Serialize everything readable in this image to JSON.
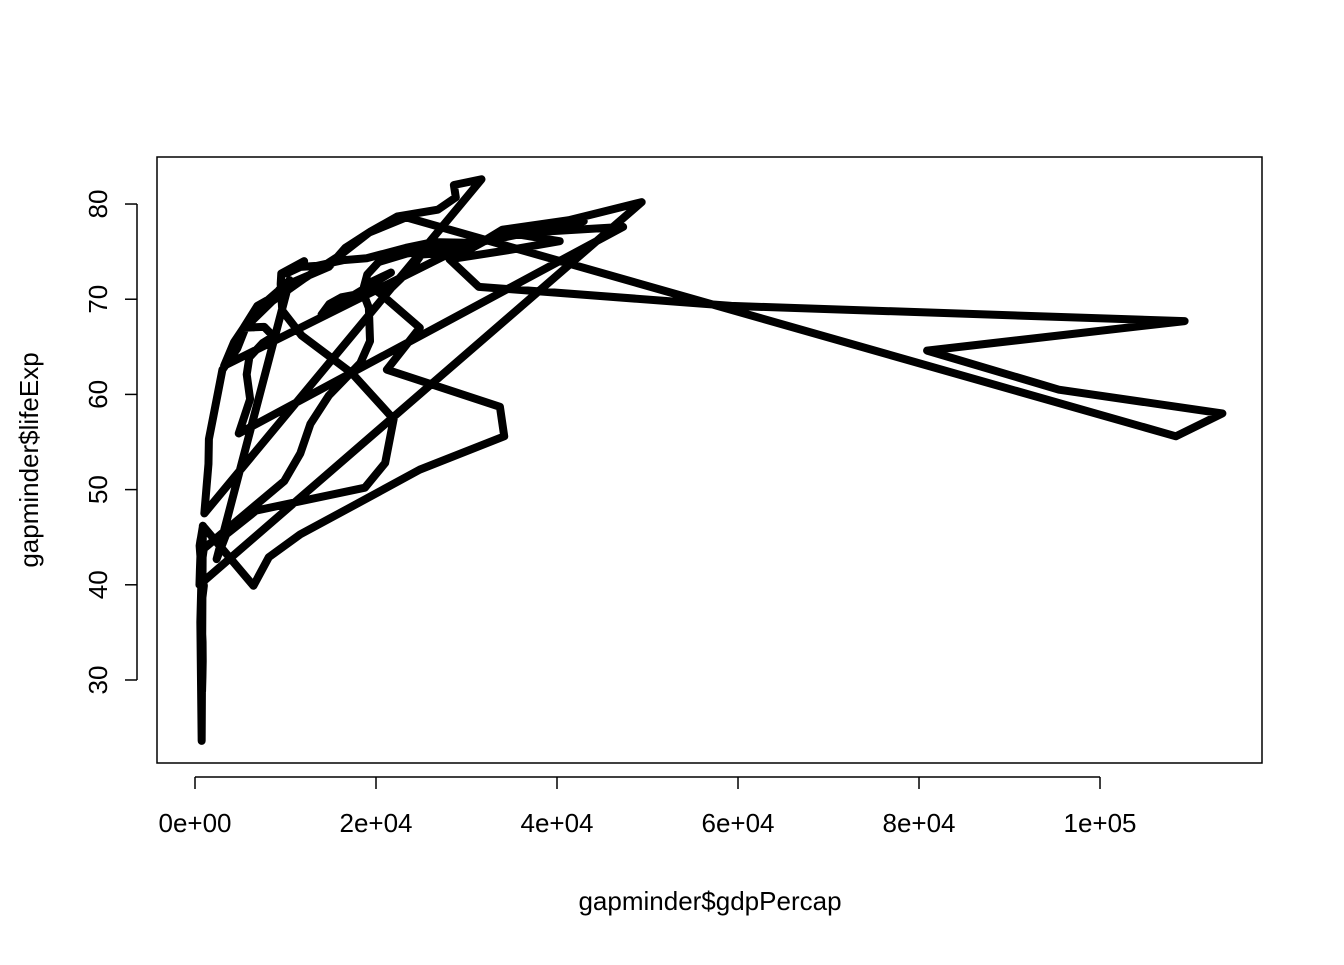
{
  "chart_data": {
    "type": "line",
    "xlabel": "gapminder$gdpPercap",
    "ylabel": "gapminder$lifeExp",
    "xlim": [
      -4199,
      117900
    ],
    "ylim": [
      21.28,
      84.94
    ],
    "xticks": [
      {
        "value": 0,
        "label": "0e+00"
      },
      {
        "value": 20000,
        "label": "2e+04"
      },
      {
        "value": 40000,
        "label": "4e+04"
      },
      {
        "value": 60000,
        "label": "6e+04"
      },
      {
        "value": 80000,
        "label": "8e+04"
      },
      {
        "value": 100000,
        "label": "1e+05"
      }
    ],
    "yticks": [
      30,
      40,
      50,
      60,
      70,
      80
    ],
    "color": "#000000",
    "x": [
      779,
      821,
      853,
      836,
      740,
      786,
      978,
      852,
      649,
      635,
      727,
      975,
      9867,
      11636,
      12753,
      14805,
      18269,
      19340,
      19211,
      18524,
      19036,
      20292,
      23404,
      29796,
      3217,
      4318,
      6577,
      9848,
      14779,
      16610,
      19384,
      22376,
      26825,
      28817,
      28605,
      31656,
      1031,
      1488,
      1536,
      2029,
      3031,
      4657,
      5623,
      8533,
      12104,
      15994,
      19234,
      23348,
      108382,
      113523,
      95458,
      80894,
      109348,
      59265,
      31354,
      28118,
      34933,
      40301,
      35110,
      47307,
      4834,
      6090,
      5715,
      6006,
      7486,
      8660,
      7641,
      5377,
      6890,
      8755,
      9314,
      10461,
      2388,
      3448,
      6757,
      18773,
      21011,
      21951,
      17364,
      11770,
      9640,
      9467,
      9534,
      12057,
      10095,
      11654,
      13450,
      16362,
      18965,
      23311,
      26299,
      31541,
      33966,
      41283,
      44684,
      49357,
      493,
      540,
      597,
      511,
      591,
      670,
      882,
      848,
      737,
      590,
      786,
      863,
      6460,
      8157,
      11626,
      16903,
      24837,
      34168,
      33693,
      21198,
      24841,
      20586,
      19014,
      21655,
      13990,
      14847,
      16173,
      19530,
      21806,
      24073,
      25010,
      29884,
      32004,
      35767,
      39097,
      42952
    ],
    "values": [
      28.8,
      30.3,
      32.0,
      34.0,
      36.1,
      38.4,
      39.9,
      40.8,
      41.7,
      41.8,
      42.1,
      43.8,
      50.9,
      53.8,
      56.9,
      59.9,
      63.3,
      65.6,
      69.1,
      70.8,
      72.6,
      73.9,
      74.8,
      75.6,
      63.0,
      65.5,
      68.7,
      71.4,
      73.4,
      75.4,
      77.1,
      78.7,
      79.4,
      80.7,
      82.0,
      82.6,
      47.5,
      52.7,
      55.3,
      57.7,
      62.6,
      64.8,
      67.1,
      69.8,
      72.2,
      74.6,
      77.0,
      78.6,
      55.6,
      58.0,
      60.5,
      64.6,
      67.7,
      69.3,
      71.3,
      74.2,
      75.2,
      76.1,
      76.9,
      77.6,
      55.9,
      59.5,
      62.1,
      63.9,
      65.4,
      66.1,
      67.1,
      67.0,
      69.3,
      70.3,
      71.0,
      72.0,
      42.7,
      45.3,
      47.8,
      50.2,
      52.8,
      57.4,
      62.2,
      66.2,
      68.8,
      71.6,
      72.7,
      74.0,
      72.7,
      73.4,
      73.5,
      74.1,
      74.3,
      75.4,
      76.0,
      75.9,
      77.3,
      78.3,
      79.1,
      80.2,
      40.0,
      41.5,
      43.0,
      44.1,
      44.6,
      45.0,
      46.2,
      44.0,
      23.6,
      36.1,
      43.4,
      46.2,
      39.9,
      42.9,
      45.3,
      48.0,
      52.1,
      55.6,
      58.7,
      62.6,
      67.0,
      70.5,
      71.6,
      72.8,
      68.4,
      69.5,
      70.2,
      70.8,
      71.3,
      73.4,
      74.7,
      75.0,
      76.1,
      76.8,
      77.3,
      78.2
    ]
  }
}
